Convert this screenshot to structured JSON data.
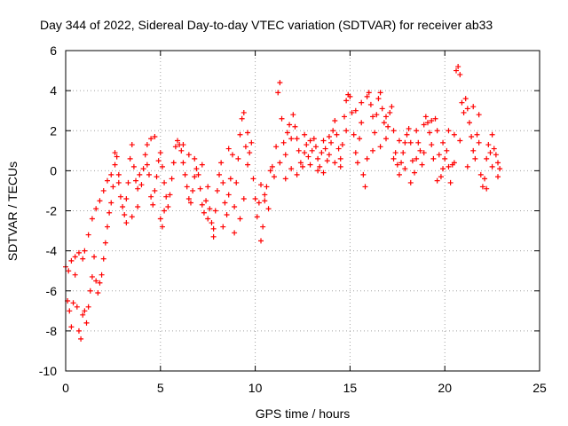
{
  "chart_data": {
    "type": "scatter",
    "title": "Day 344 of 2022, Sidereal Day-to-day VTEC variation (SDTVAR) for receiver ab33",
    "xlabel": "GPS time / hours",
    "ylabel": "SDTVAR / TECUs",
    "xlim": [
      0,
      25
    ],
    "ylim": [
      -10,
      6
    ],
    "xticks": [
      0,
      5,
      10,
      15,
      20,
      25
    ],
    "yticks": [
      -10,
      -8,
      -6,
      -4,
      -2,
      0,
      2,
      4,
      6
    ],
    "grid": true,
    "marker": "+",
    "color": "#ff0000",
    "series": [
      {
        "name": "SDTVAR",
        "points": [
          [
            0.0,
            -4.8
          ],
          [
            0.1,
            -6.5
          ],
          [
            0.2,
            -7.0
          ],
          [
            0.3,
            -7.8
          ],
          [
            0.4,
            -6.6
          ],
          [
            0.5,
            -5.2
          ],
          [
            0.6,
            -6.8
          ],
          [
            0.7,
            -8.0
          ],
          [
            0.8,
            -8.4
          ],
          [
            0.9,
            -7.2
          ],
          [
            0.15,
            -5.0
          ],
          [
            0.3,
            -4.5
          ],
          [
            0.5,
            -4.3
          ],
          [
            0.7,
            -4.1
          ],
          [
            0.9,
            -4.4
          ],
          [
            1.0,
            -7.0
          ],
          [
            1.1,
            -7.6
          ],
          [
            1.2,
            -6.8
          ],
          [
            1.3,
            -6.0
          ],
          [
            1.4,
            -5.3
          ],
          [
            1.5,
            -4.3
          ],
          [
            1.6,
            -5.5
          ],
          [
            1.7,
            -6.1
          ],
          [
            1.8,
            -5.6
          ],
          [
            1.9,
            -5.2
          ],
          [
            1.0,
            -4.0
          ],
          [
            1.2,
            -3.2
          ],
          [
            1.4,
            -2.4
          ],
          [
            1.6,
            -1.9
          ],
          [
            1.8,
            -1.5
          ],
          [
            2.0,
            -4.4
          ],
          [
            2.1,
            -3.6
          ],
          [
            2.2,
            -2.8
          ],
          [
            2.3,
            -2.1
          ],
          [
            2.4,
            -1.6
          ],
          [
            2.5,
            -0.8
          ],
          [
            2.6,
            0.3
          ],
          [
            2.7,
            0.7
          ],
          [
            2.8,
            -0.6
          ],
          [
            2.9,
            -1.3
          ],
          [
            2.0,
            -1.0
          ],
          [
            2.2,
            -0.5
          ],
          [
            2.4,
            -0.2
          ],
          [
            2.6,
            0.9
          ],
          [
            2.8,
            -0.2
          ],
          [
            3.0,
            -1.8
          ],
          [
            3.1,
            -2.2
          ],
          [
            3.2,
            -1.4
          ],
          [
            3.3,
            -0.6
          ],
          [
            3.4,
            0.6
          ],
          [
            3.5,
            1.3
          ],
          [
            3.6,
            0.2
          ],
          [
            3.7,
            -0.5
          ],
          [
            3.8,
            -0.9
          ],
          [
            3.9,
            -0.2
          ],
          [
            3.2,
            -2.6
          ],
          [
            3.5,
            -2.3
          ],
          [
            3.8,
            -1.8
          ],
          [
            4.0,
            -0.7
          ],
          [
            4.1,
            0.1
          ],
          [
            4.2,
            0.8
          ],
          [
            4.3,
            0.3
          ],
          [
            4.4,
            -0.2
          ],
          [
            4.5,
            -1.3
          ],
          [
            4.6,
            -1.7
          ],
          [
            4.7,
            -1.0
          ],
          [
            4.8,
            -0.3
          ],
          [
            4.9,
            0.5
          ],
          [
            4.3,
            1.3
          ],
          [
            4.5,
            1.6
          ],
          [
            4.7,
            1.7
          ],
          [
            5.0,
            0.9
          ],
          [
            5.1,
            0.2
          ],
          [
            5.2,
            -0.6
          ],
          [
            5.3,
            -1.3
          ],
          [
            5.4,
            -1.8
          ],
          [
            5.5,
            -1.2
          ],
          [
            5.6,
            -0.4
          ],
          [
            5.7,
            0.4
          ],
          [
            5.8,
            1.2
          ],
          [
            5.9,
            1.5
          ],
          [
            5.0,
            -2.4
          ],
          [
            5.1,
            -2.8
          ],
          [
            5.2,
            -2.0
          ],
          [
            6.0,
            1.3
          ],
          [
            6.1,
            1.0
          ],
          [
            6.2,
            0.4
          ],
          [
            6.3,
            -0.2
          ],
          [
            6.4,
            -0.8
          ],
          [
            6.5,
            -1.4
          ],
          [
            6.6,
            -1.6
          ],
          [
            6.7,
            -1.0
          ],
          [
            6.8,
            -0.3
          ],
          [
            6.9,
            0.1
          ],
          [
            6.2,
            1.3
          ],
          [
            6.5,
            0.8
          ],
          [
            6.8,
            0.6
          ],
          [
            7.0,
            -0.2
          ],
          [
            7.1,
            -0.9
          ],
          [
            7.2,
            -1.7
          ],
          [
            7.3,
            -2.1
          ],
          [
            7.4,
            -1.5
          ],
          [
            7.5,
            -0.8
          ],
          [
            7.6,
            -1.9
          ],
          [
            7.7,
            -2.6
          ],
          [
            7.8,
            -3.3
          ],
          [
            7.9,
            -2.0
          ],
          [
            7.2,
            0.3
          ],
          [
            7.5,
            -2.4
          ],
          [
            7.8,
            -2.9
          ],
          [
            8.0,
            -1.0
          ],
          [
            8.1,
            -0.2
          ],
          [
            8.2,
            0.4
          ],
          [
            8.3,
            -0.6
          ],
          [
            8.4,
            -1.6
          ],
          [
            8.5,
            -2.2
          ],
          [
            8.6,
            -1.2
          ],
          [
            8.7,
            -0.4
          ],
          [
            8.8,
            0.8
          ],
          [
            8.9,
            -1.8
          ],
          [
            8.3,
            -2.8
          ],
          [
            8.6,
            1.1
          ],
          [
            8.9,
            -3.1
          ],
          [
            9.0,
            -0.6
          ],
          [
            9.1,
            0.6
          ],
          [
            9.2,
            1.8
          ],
          [
            9.3,
            2.6
          ],
          [
            9.4,
            2.9
          ],
          [
            9.5,
            1.2
          ],
          [
            9.6,
            0.3
          ],
          [
            9.7,
            0.9
          ],
          [
            9.8,
            1.4
          ],
          [
            9.9,
            -0.4
          ],
          [
            9.2,
            -2.4
          ],
          [
            9.4,
            -1.4
          ],
          [
            9.6,
            1.9
          ],
          [
            10.0,
            -1.4
          ],
          [
            10.1,
            -2.3
          ],
          [
            10.2,
            -1.6
          ],
          [
            10.3,
            -0.7
          ],
          [
            10.4,
            -2.8
          ],
          [
            10.5,
            -1.2
          ],
          [
            10.6,
            -0.8
          ],
          [
            10.7,
            -1.9
          ],
          [
            10.8,
            0.0
          ],
          [
            10.9,
            0.2
          ],
          [
            10.3,
            -3.5
          ],
          [
            10.5,
            -1.5
          ],
          [
            11.0,
            -0.3
          ],
          [
            11.1,
            1.2
          ],
          [
            11.2,
            3.9
          ],
          [
            11.3,
            4.4
          ],
          [
            11.4,
            2.6
          ],
          [
            11.5,
            1.4
          ],
          [
            11.6,
            0.8
          ],
          [
            11.7,
            1.9
          ],
          [
            11.8,
            2.3
          ],
          [
            11.9,
            1.6
          ],
          [
            11.3,
            0.4
          ],
          [
            11.6,
            -0.4
          ],
          [
            11.9,
            0.1
          ],
          [
            12.0,
            2.8
          ],
          [
            12.1,
            2.2
          ],
          [
            12.2,
            1.6
          ],
          [
            12.3,
            1.0
          ],
          [
            12.4,
            0.4
          ],
          [
            12.5,
            0.2
          ],
          [
            12.6,
            0.9
          ],
          [
            12.7,
            1.3
          ],
          [
            12.8,
            0.7
          ],
          [
            12.9,
            0.3
          ],
          [
            12.2,
            -0.2
          ],
          [
            12.6,
            1.8
          ],
          [
            12.9,
            1.5
          ],
          [
            13.0,
            1.0
          ],
          [
            13.1,
            1.6
          ],
          [
            13.2,
            1.2
          ],
          [
            13.3,
            0.6
          ],
          [
            13.4,
            0.2
          ],
          [
            13.5,
            0.9
          ],
          [
            13.6,
            1.5
          ],
          [
            13.7,
            1.1
          ],
          [
            13.8,
            0.5
          ],
          [
            13.9,
            0.8
          ],
          [
            13.3,
            0.0
          ],
          [
            13.6,
            -0.1
          ],
          [
            13.9,
            1.7
          ],
          [
            14.0,
            1.4
          ],
          [
            14.1,
            2.0
          ],
          [
            14.2,
            2.5
          ],
          [
            14.3,
            1.8
          ],
          [
            14.4,
            1.1
          ],
          [
            14.5,
            0.6
          ],
          [
            14.6,
            1.3
          ],
          [
            14.7,
            2.7
          ],
          [
            14.8,
            3.5
          ],
          [
            14.9,
            3.8
          ],
          [
            14.2,
            0.4
          ],
          [
            14.5,
            0.2
          ],
          [
            14.8,
            2.0
          ],
          [
            15.0,
            3.7
          ],
          [
            15.1,
            2.9
          ],
          [
            15.2,
            1.8
          ],
          [
            15.3,
            0.9
          ],
          [
            15.4,
            0.4
          ],
          [
            15.5,
            1.6
          ],
          [
            15.6,
            2.4
          ],
          [
            15.7,
            -0.2
          ],
          [
            15.8,
            -0.8
          ],
          [
            15.9,
            0.6
          ],
          [
            15.3,
            3.0
          ],
          [
            15.6,
            3.4
          ],
          [
            15.9,
            3.7
          ],
          [
            16.0,
            3.9
          ],
          [
            16.1,
            3.3
          ],
          [
            16.2,
            2.7
          ],
          [
            16.3,
            1.9
          ],
          [
            16.4,
            2.8
          ],
          [
            16.5,
            3.6
          ],
          [
            16.6,
            3.9
          ],
          [
            16.7,
            3.1
          ],
          [
            16.8,
            2.4
          ],
          [
            16.9,
            1.6
          ],
          [
            16.2,
            1.0
          ],
          [
            16.6,
            1.2
          ],
          [
            16.9,
            2.7
          ],
          [
            17.0,
            2.2
          ],
          [
            17.1,
            2.9
          ],
          [
            17.2,
            3.2
          ],
          [
            17.3,
            2.0
          ],
          [
            17.4,
            0.9
          ],
          [
            17.5,
            0.3
          ],
          [
            17.6,
            -0.2
          ],
          [
            17.7,
            0.4
          ],
          [
            17.8,
            0.9
          ],
          [
            17.9,
            1.4
          ],
          [
            17.3,
            0.6
          ],
          [
            17.6,
            1.5
          ],
          [
            17.9,
            0.1
          ],
          [
            18.0,
            1.8
          ],
          [
            18.1,
            2.1
          ],
          [
            18.2,
            1.4
          ],
          [
            18.3,
            0.5
          ],
          [
            18.4,
            -0.1
          ],
          [
            18.5,
            0.6
          ],
          [
            18.6,
            1.4
          ],
          [
            18.7,
            1.0
          ],
          [
            18.8,
            0.3
          ],
          [
            18.9,
            2.3
          ],
          [
            18.2,
            -0.6
          ],
          [
            18.5,
            2.0
          ],
          [
            18.9,
            0.9
          ],
          [
            19.0,
            2.7
          ],
          [
            19.1,
            2.4
          ],
          [
            19.2,
            1.9
          ],
          [
            19.3,
            1.3
          ],
          [
            19.4,
            0.6
          ],
          [
            19.5,
            2.6
          ],
          [
            19.6,
            2.0
          ],
          [
            19.7,
            0.8
          ],
          [
            19.8,
            -0.3
          ],
          [
            19.9,
            0.1
          ],
          [
            19.3,
            2.5
          ],
          [
            19.6,
            -0.5
          ],
          [
            19.9,
            1.4
          ],
          [
            20.0,
            0.6
          ],
          [
            20.1,
            1.0
          ],
          [
            20.2,
            0.2
          ],
          [
            20.3,
            -0.6
          ],
          [
            20.4,
            0.3
          ],
          [
            20.5,
            1.8
          ],
          [
            20.6,
            5.0
          ],
          [
            20.7,
            5.2
          ],
          [
            20.8,
            4.8
          ],
          [
            20.9,
            3.4
          ],
          [
            20.2,
            2.0
          ],
          [
            20.5,
            0.4
          ],
          [
            20.8,
            1.5
          ],
          [
            21.0,
            2.9
          ],
          [
            21.1,
            3.6
          ],
          [
            21.2,
            3.1
          ],
          [
            21.3,
            2.4
          ],
          [
            21.4,
            1.7
          ],
          [
            21.5,
            1.0
          ],
          [
            21.6,
            0.6
          ],
          [
            21.7,
            1.8
          ],
          [
            21.8,
            1.4
          ],
          [
            21.9,
            -0.2
          ],
          [
            21.2,
            0.2
          ],
          [
            21.5,
            3.2
          ],
          [
            21.8,
            2.8
          ],
          [
            22.0,
            -0.8
          ],
          [
            22.1,
            -0.4
          ],
          [
            22.2,
            0.6
          ],
          [
            22.3,
            1.3
          ],
          [
            22.4,
            0.9
          ],
          [
            22.5,
            0.2
          ],
          [
            22.6,
            1.1
          ],
          [
            22.7,
            0.8
          ],
          [
            22.8,
            -0.3
          ],
          [
            22.9,
            0.1
          ],
          [
            22.2,
            -0.9
          ],
          [
            22.5,
            1.8
          ],
          [
            22.8,
            0.4
          ]
        ]
      }
    ]
  }
}
